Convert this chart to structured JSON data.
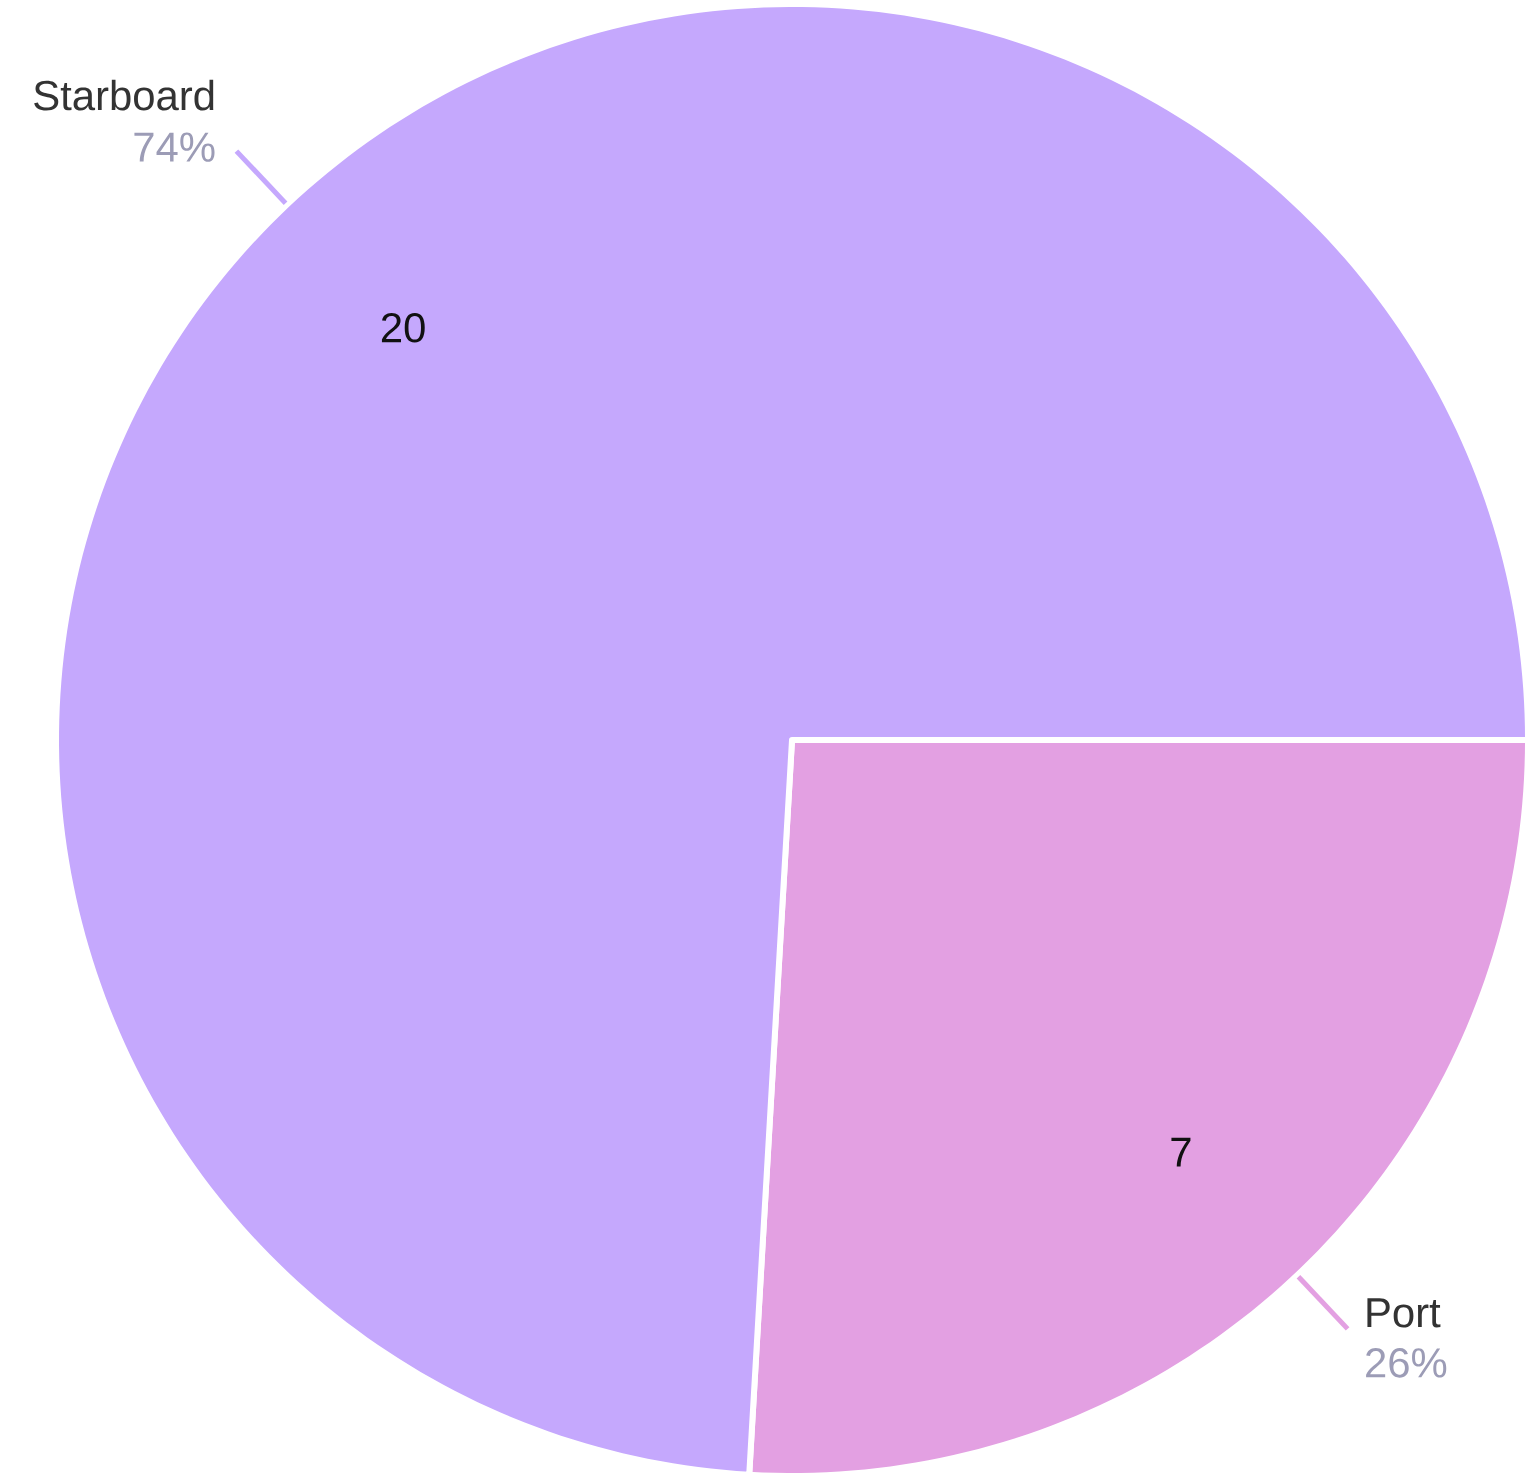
{
  "chart_data": {
    "type": "pie",
    "categories": [
      "Port",
      "Starboard"
    ],
    "values": [
      7,
      20
    ],
    "colors": [
      "#e3a0e2",
      "#c5a8fd"
    ],
    "data_labels": true,
    "annotations": [
      "26%",
      "74%"
    ]
  }
}
